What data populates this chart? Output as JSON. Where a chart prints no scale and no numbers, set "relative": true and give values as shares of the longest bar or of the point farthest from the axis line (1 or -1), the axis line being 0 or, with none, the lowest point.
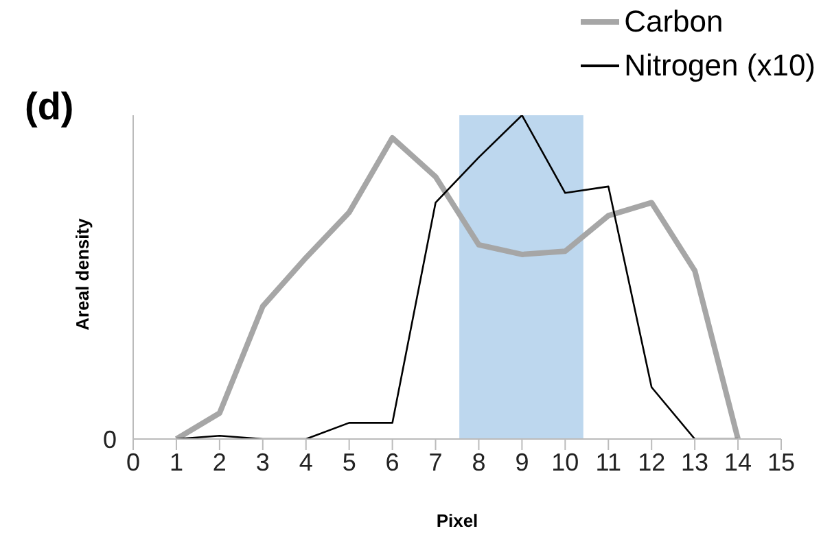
{
  "chart_data": {
    "type": "line",
    "title": "(d)",
    "xlabel": "Pixel",
    "ylabel": "Areal density",
    "relative": true,
    "x": [
      1,
      2,
      3,
      4,
      5,
      6,
      7,
      8,
      9,
      10,
      11,
      12,
      13,
      14
    ],
    "series": [
      {
        "name": "Carbon",
        "color": "#a6a6a6",
        "values": [
          0,
          0.08,
          0.41,
          0.56,
          0.7,
          0.93,
          0.81,
          0.6,
          0.57,
          0.58,
          0.69,
          0.73,
          0.52,
          0
        ]
      },
      {
        "name": "Nitrogen (x10)",
        "color": "#000000",
        "values": [
          0,
          0.01,
          0,
          0,
          0.05,
          0.05,
          0.73,
          0.87,
          1,
          0.76,
          0.78,
          0.16,
          0,
          0
        ]
      }
    ],
    "xlim": [
      0,
      15
    ],
    "xticks": [
      0,
      1,
      2,
      3,
      4,
      5,
      6,
      7,
      8,
      9,
      10,
      11,
      12,
      13,
      14,
      15
    ],
    "bands": [
      {
        "axis": "x",
        "from": 7.55,
        "to": 10.42,
        "color": "#bdd7ee"
      }
    ],
    "annotations": [
      "0"
    ],
    "legend": "top right",
    "marker": "none",
    "line_style": "solid"
  }
}
